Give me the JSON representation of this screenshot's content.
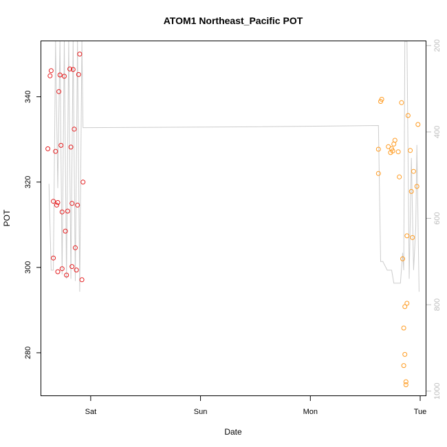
{
  "chart_data": {
    "type": "scatter",
    "title": "ATOM1 Northeast_Pacific POT",
    "xlabel": "Date",
    "ylabel": "POT",
    "xlim": [
      -0.45,
      3.05
    ],
    "ylim": [
      270,
      353
    ],
    "x_ticks": [
      {
        "value": 0,
        "label": "Sat"
      },
      {
        "value": 1,
        "label": "Sun"
      },
      {
        "value": 2,
        "label": "Mon"
      },
      {
        "value": 3,
        "label": "Tue"
      }
    ],
    "y_ticks": [
      {
        "value": 280,
        "label": "280"
      },
      {
        "value": 300,
        "label": "300"
      },
      {
        "value": 320,
        "label": "320"
      },
      {
        "value": 340,
        "label": "340"
      }
    ],
    "right_axis": {
      "label": "",
      "color": "#bdbdbd",
      "reversed": true,
      "lim": [
        190,
        1010
      ],
      "ticks": [
        {
          "value": 200,
          "label": "200"
        },
        {
          "value": 400,
          "label": "400"
        },
        {
          "value": 600,
          "label": "600"
        },
        {
          "value": 800,
          "label": "800"
        },
        {
          "value": 1000,
          "label": "1000"
        }
      ]
    },
    "series": [
      {
        "color": "#e41a1c",
        "marker": "circle-open",
        "points": [
          [
            -0.39,
            327.8
          ],
          [
            -0.37,
            344.9
          ],
          [
            -0.36,
            346.1
          ],
          [
            -0.34,
            302.2
          ],
          [
            -0.34,
            315.5
          ],
          [
            -0.32,
            327.2
          ],
          [
            -0.31,
            314.6
          ],
          [
            -0.3,
            299.0
          ],
          [
            -0.3,
            315.2
          ],
          [
            -0.29,
            341.2
          ],
          [
            -0.28,
            345.1
          ],
          [
            -0.27,
            328.6
          ],
          [
            -0.26,
            299.7
          ],
          [
            -0.26,
            313.0
          ],
          [
            -0.24,
            344.8
          ],
          [
            -0.23,
            308.5
          ],
          [
            -0.22,
            298.2
          ],
          [
            -0.21,
            313.2
          ],
          [
            -0.19,
            346.5
          ],
          [
            -0.18,
            328.2
          ],
          [
            -0.17,
            315.0
          ],
          [
            -0.17,
            300.2
          ],
          [
            -0.16,
            346.4
          ],
          [
            -0.15,
            332.4
          ],
          [
            -0.14,
            304.6
          ],
          [
            -0.13,
            299.4
          ],
          [
            -0.12,
            314.6
          ],
          [
            -0.11,
            345.2
          ],
          [
            -0.1,
            350.0
          ],
          [
            -0.08,
            297.1
          ],
          [
            -0.07,
            320.0
          ]
        ]
      },
      {
        "color": "#ff9a1e",
        "marker": "circle-open",
        "points": [
          [
            2.62,
            322.0
          ],
          [
            2.62,
            327.7
          ],
          [
            2.64,
            338.9
          ],
          [
            2.65,
            339.4
          ],
          [
            2.71,
            328.3
          ],
          [
            2.73,
            326.9
          ],
          [
            2.74,
            327.8
          ],
          [
            2.75,
            327.3
          ],
          [
            2.76,
            328.9
          ],
          [
            2.77,
            329.8
          ],
          [
            2.8,
            327.1
          ],
          [
            2.81,
            321.2
          ],
          [
            2.83,
            338.6
          ],
          [
            2.84,
            302.0
          ],
          [
            2.85,
            285.8
          ],
          [
            2.85,
            277.0
          ],
          [
            2.86,
            290.8
          ],
          [
            2.86,
            279.6
          ],
          [
            2.87,
            273.2
          ],
          [
            2.87,
            272.5
          ],
          [
            2.88,
            291.6
          ],
          [
            2.88,
            307.4
          ],
          [
            2.89,
            335.6
          ],
          [
            2.91,
            327.4
          ],
          [
            2.92,
            317.8
          ],
          [
            2.93,
            307.0
          ],
          [
            2.94,
            322.5
          ],
          [
            2.97,
            319.0
          ],
          [
            2.98,
            333.5
          ]
        ]
      }
    ],
    "pressure_line": {
      "axis": "right",
      "color": "#cccccc",
      "points": [
        [
          -0.38,
          520
        ],
        [
          -0.36,
          720
        ],
        [
          -0.34,
          720
        ],
        [
          -0.32,
          190
        ],
        [
          -0.3,
          530
        ],
        [
          -0.28,
          190
        ],
        [
          -0.26,
          730
        ],
        [
          -0.24,
          190
        ],
        [
          -0.22,
          740
        ],
        [
          -0.2,
          190
        ],
        [
          -0.18,
          740
        ],
        [
          -0.16,
          190
        ],
        [
          -0.14,
          745
        ],
        [
          -0.12,
          190
        ],
        [
          -0.1,
          770
        ],
        [
          -0.08,
          190
        ],
        [
          -0.07,
          390
        ],
        [
          1.5,
          388
        ],
        [
          2.62,
          385
        ],
        [
          2.64,
          700
        ],
        [
          2.66,
          700
        ],
        [
          2.7,
          720
        ],
        [
          2.74,
          720
        ],
        [
          2.76,
          750
        ],
        [
          2.82,
          750
        ],
        [
          2.84,
          680
        ],
        [
          2.85,
          720
        ],
        [
          2.86,
          190
        ],
        [
          2.88,
          190
        ],
        [
          2.9,
          740
        ],
        [
          2.92,
          460
        ],
        [
          2.94,
          720
        ],
        [
          2.96,
          620
        ],
        [
          2.97,
          430
        ],
        [
          2.99,
          770
        ]
      ]
    }
  }
}
